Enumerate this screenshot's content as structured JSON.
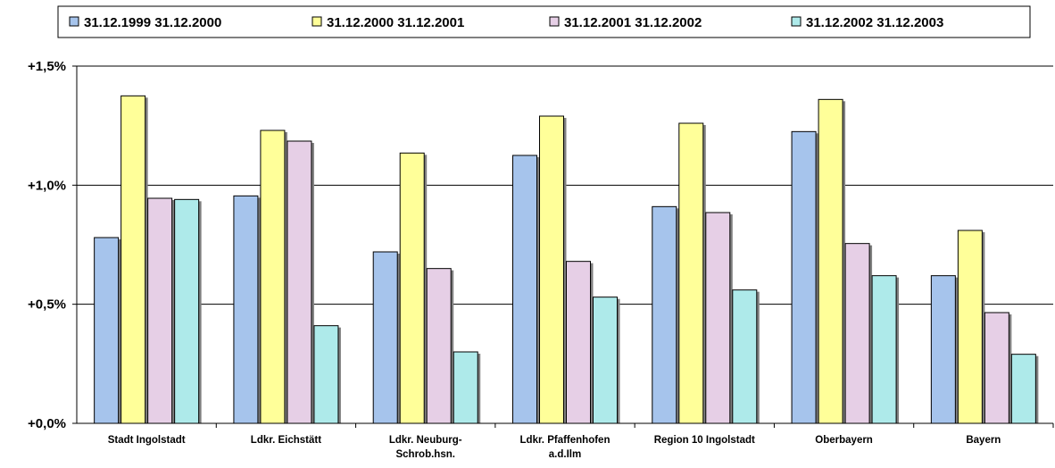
{
  "chart_data": {
    "type": "bar",
    "categories": [
      [
        "Stadt Ingolstadt"
      ],
      [
        "Ldkr. Eichstätt"
      ],
      [
        "Ldkr. Neuburg-",
        "Schrob.hsn."
      ],
      [
        "Ldkr. Pfaffenhofen",
        "a.d.Ilm"
      ],
      [
        "Region 10 Ingolstadt"
      ],
      [
        "Oberbayern"
      ],
      [
        "Bayern"
      ]
    ],
    "series": [
      {
        "name": "31.12.1999 31.12.2000",
        "color": "#a6c4ec",
        "values": [
          0.78,
          0.955,
          0.72,
          1.125,
          0.91,
          1.225,
          0.62
        ]
      },
      {
        "name": "31.12.2000 31.12.2001",
        "color": "#ffff99",
        "values": [
          1.375,
          1.23,
          1.135,
          1.29,
          1.26,
          1.36,
          0.81
        ]
      },
      {
        "name": "31.12.2001 31.12.2002",
        "color": "#e6cfe6",
        "values": [
          0.945,
          1.185,
          0.65,
          0.68,
          0.885,
          0.755,
          0.465
        ]
      },
      {
        "name": "31.12.2002 31.12.2003",
        "color": "#aeeaea",
        "values": [
          0.94,
          0.41,
          0.3,
          0.53,
          0.56,
          0.62,
          0.29
        ]
      }
    ],
    "ylim": [
      0,
      1.5
    ],
    "y_ticks": [
      0,
      0.5,
      1.0,
      1.5
    ],
    "y_tick_labels": [
      "+0,0%",
      "+0,5%",
      "+1,0%",
      "+1,5%"
    ],
    "grid": true,
    "legend": "top"
  }
}
